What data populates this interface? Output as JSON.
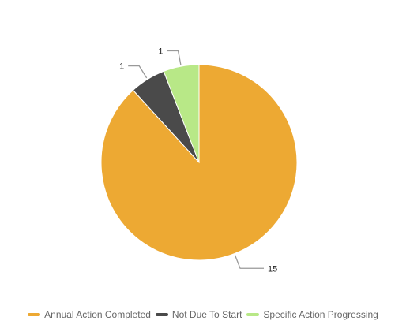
{
  "chart_data": {
    "type": "pie",
    "title": "",
    "categories": [
      "Annual Action Completed",
      "Not Due To Start",
      "Specific Action Progressing"
    ],
    "values": [
      15,
      1,
      1
    ],
    "colors": [
      "#eda933",
      "#4a4a4a",
      "#b8e887"
    ],
    "data_labels": [
      "15",
      "1",
      "1"
    ],
    "legend_position": "bottom",
    "start_angle": "12 o'clock, clockwise"
  },
  "legend": {
    "items": [
      {
        "label": "Annual Action Completed",
        "color": "#eda933"
      },
      {
        "label": "Not Due To Start",
        "color": "#4a4a4a"
      },
      {
        "label": "Specific Action Progressing",
        "color": "#b8e887"
      }
    ]
  }
}
